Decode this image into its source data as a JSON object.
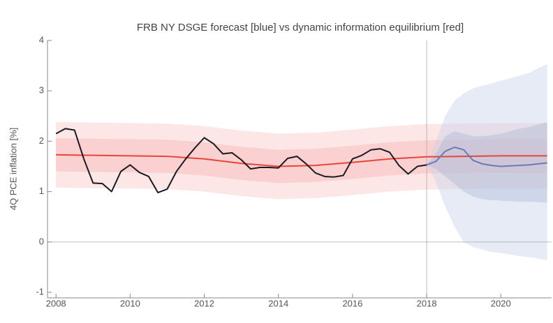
{
  "chart_data": {
    "type": "line",
    "title": "FRB NY DSGE forecast [blue] vs dynamic information equilibrium [red]",
    "y_label": "4Q PCE inflation [%]",
    "xlim": [
      2007.77,
      2021.37
    ],
    "ylim": [
      -1.11,
      4
    ],
    "xticks": [
      2008,
      2010,
      2012,
      2014,
      2016,
      2018,
      2020
    ],
    "yticks": [
      -1,
      0,
      1,
      2,
      3,
      4
    ],
    "vline": 2018,
    "bands": [
      {
        "color": "#fde6e6",
        "x": [
          2008,
          2009,
          2010,
          2011,
          2012,
          2013,
          2014,
          2015,
          2016,
          2017,
          2018,
          2019,
          2020,
          2021.25
        ],
        "upper": [
          2.38,
          2.37,
          2.36,
          2.35,
          2.3,
          2.21,
          2.15,
          2.17,
          2.23,
          2.3,
          2.34,
          2.35,
          2.36,
          2.36
        ],
        "lower": [
          1.08,
          1.07,
          1.06,
          1.05,
          1.0,
          0.91,
          0.85,
          0.87,
          0.93,
          1.0,
          1.04,
          1.05,
          1.06,
          1.06
        ]
      },
      {
        "color": "#fbd0d0",
        "x": [
          2008,
          2009,
          2010,
          2011,
          2012,
          2013,
          2014,
          2015,
          2016,
          2017,
          2018,
          2019,
          2020,
          2021.25
        ],
        "upper": [
          2.06,
          2.05,
          2.04,
          2.03,
          1.98,
          1.89,
          1.83,
          1.85,
          1.91,
          1.98,
          2.02,
          2.03,
          2.04,
          2.04
        ],
        "lower": [
          1.4,
          1.39,
          1.38,
          1.37,
          1.32,
          1.23,
          1.17,
          1.19,
          1.25,
          1.32,
          1.36,
          1.37,
          1.38,
          1.38
        ]
      },
      {
        "color": "rgba(200,210,232,0.45)",
        "x": [
          2018,
          2018.25,
          2018.5,
          2018.75,
          2019,
          2019.25,
          2019.5,
          2019.75,
          2020,
          2020.25,
          2020.5,
          2020.75,
          2021,
          2021.25
        ],
        "upper": [
          1.53,
          2.0,
          2.5,
          2.8,
          2.95,
          3.05,
          3.1,
          3.15,
          3.2,
          3.25,
          3.3,
          3.35,
          3.45,
          3.53
        ],
        "lower": [
          1.53,
          1.2,
          0.7,
          0.3,
          0.0,
          -0.1,
          -0.15,
          -0.2,
          -0.22,
          -0.25,
          -0.28,
          -0.3,
          -0.33,
          -0.36
        ]
      },
      {
        "color": "rgba(170,182,215,0.4)",
        "x": [
          2018,
          2018.25,
          2018.5,
          2018.75,
          2019,
          2019.25,
          2019.5,
          2019.75,
          2020,
          2020.25,
          2020.5,
          2020.75,
          2021,
          2021.25
        ],
        "upper": [
          1.53,
          1.75,
          2.1,
          2.2,
          2.15,
          2.1,
          2.1,
          2.12,
          2.15,
          2.2,
          2.25,
          2.28,
          2.33,
          2.38
        ],
        "lower": [
          1.53,
          1.45,
          1.3,
          1.15,
          1.0,
          0.9,
          0.85,
          0.83,
          0.82,
          0.81,
          0.8,
          0.8,
          0.79,
          0.78
        ]
      }
    ],
    "series": [
      {
        "color": "#e8443c",
        "x": [
          2008,
          2009,
          2010,
          2011,
          2012,
          2013,
          2014,
          2015,
          2016,
          2017,
          2018,
          2019,
          2020,
          2021.25
        ],
        "values": [
          1.73,
          1.72,
          1.71,
          1.7,
          1.65,
          1.56,
          1.5,
          1.52,
          1.58,
          1.65,
          1.69,
          1.7,
          1.71,
          1.71
        ]
      },
      {
        "color": "#6b79b5",
        "x": [
          2018,
          2018.25,
          2018.5,
          2018.75,
          2019,
          2019.25,
          2019.5,
          2019.75,
          2020,
          2020.25,
          2020.5,
          2020.75,
          2021,
          2021.25
        ],
        "values": [
          1.53,
          1.6,
          1.8,
          1.88,
          1.83,
          1.62,
          1.55,
          1.52,
          1.5,
          1.51,
          1.52,
          1.53,
          1.55,
          1.57
        ]
      },
      {
        "color": "#1a1a22",
        "x": [
          2008,
          2008.25,
          2008.5,
          2008.75,
          2009,
          2009.25,
          2009.5,
          2009.75,
          2010,
          2010.25,
          2010.5,
          2010.75,
          2011,
          2011.25,
          2011.5,
          2011.75,
          2012,
          2012.25,
          2012.5,
          2012.75,
          2013,
          2013.25,
          2013.5,
          2013.75,
          2014,
          2014.25,
          2014.5,
          2014.75,
          2015,
          2015.25,
          2015.5,
          2015.75,
          2016,
          2016.25,
          2016.5,
          2016.75,
          2017,
          2017.25,
          2017.5,
          2017.75,
          2018
        ],
        "values": [
          2.15,
          2.25,
          2.22,
          1.65,
          1.17,
          1.16,
          1.0,
          1.4,
          1.53,
          1.38,
          1.3,
          0.98,
          1.05,
          1.4,
          1.65,
          1.87,
          2.07,
          1.95,
          1.75,
          1.77,
          1.63,
          1.45,
          1.48,
          1.48,
          1.47,
          1.66,
          1.7,
          1.55,
          1.37,
          1.3,
          1.29,
          1.32,
          1.65,
          1.72,
          1.83,
          1.85,
          1.78,
          1.52,
          1.35,
          1.5,
          1.53
        ]
      }
    ]
  }
}
